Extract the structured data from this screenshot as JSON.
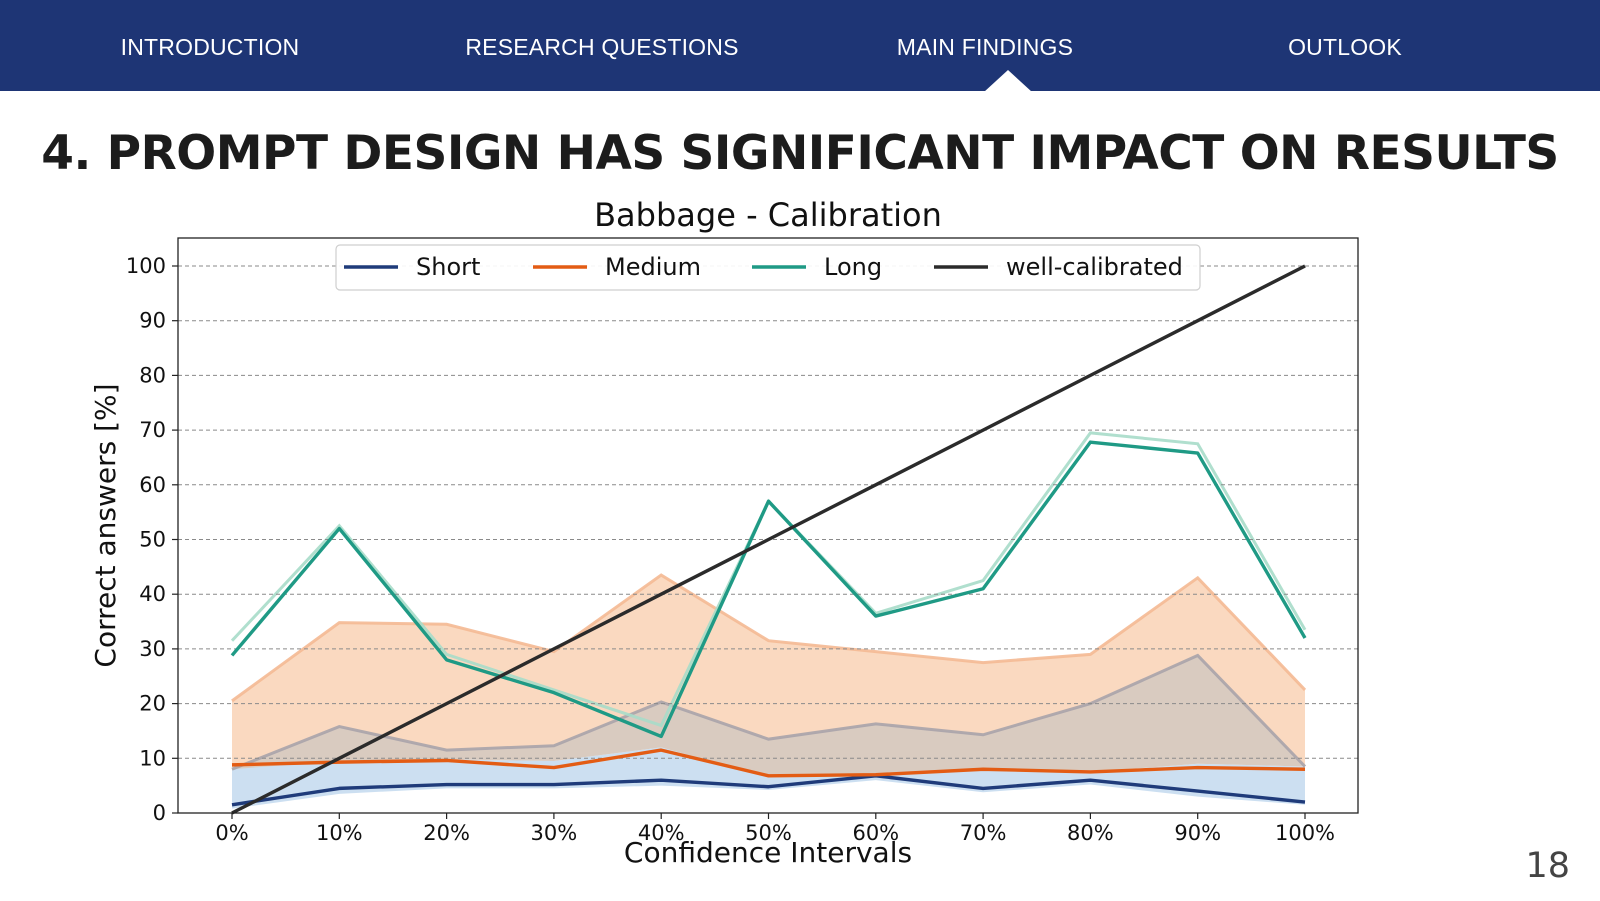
{
  "nav": {
    "items": [
      {
        "label": "INTRODUCTION"
      },
      {
        "label": "RESEARCH QUESTIONS"
      },
      {
        "label": "MAIN FINDINGS"
      },
      {
        "label": "OUTLOOK"
      }
    ],
    "active_index": 2
  },
  "slide": {
    "title": "4. PROMPT DESIGN HAS SIGNIFICANT IMPACT ON RESULTS",
    "page_number": "18"
  },
  "colors": {
    "nav_bg": "#1e3575",
    "short": "#1f3b7a",
    "medium": "#e35c14",
    "long": "#1f9a85",
    "well_calibrated": "#2b2b2b",
    "short_band": "#c9ddf0",
    "medium_band": "#fad7bd",
    "overlap_band": "#d9cbc0"
  },
  "chart_data": {
    "type": "line",
    "title": "Babbage - Calibration",
    "xlabel": "Confidence Intervals",
    "ylabel": "Correct answers [%]",
    "categories": [
      "0%",
      "10%",
      "20%",
      "30%",
      "40%",
      "50%",
      "60%",
      "70%",
      "80%",
      "90%",
      "100%"
    ],
    "yticks": [
      0,
      10,
      20,
      30,
      40,
      50,
      60,
      70,
      80,
      90,
      100
    ],
    "ylim": [
      0,
      105
    ],
    "grid": "horizontal dashed",
    "legend_position": "top",
    "series": [
      {
        "name": "Short",
        "values": [
          1.5,
          4.5,
          5.2,
          5.2,
          6.0,
          4.8,
          6.8,
          4.5,
          6.0,
          4.0,
          2.0
        ],
        "band_upper": [
          8.5,
          9.5,
          9.8,
          9.5,
          12.0,
          6.5,
          6.8,
          8.0,
          7.5,
          9.0,
          8.5
        ],
        "band_lower": [
          0.8,
          3.5,
          4.5,
          4.5,
          5.0,
          4.2,
          6.0,
          3.8,
          5.2,
          3.0,
          1.5
        ]
      },
      {
        "name": "Medium",
        "values": [
          8.8,
          9.3,
          9.6,
          8.3,
          11.5,
          6.8,
          7.0,
          8.0,
          7.5,
          8.3,
          8.0
        ],
        "band_upper": [
          20.5,
          34.8,
          34.5,
          29.5,
          43.5,
          31.5,
          29.5,
          27.5,
          29.0,
          43.0,
          22.5
        ],
        "band_lower": [
          8.0,
          15.8,
          11.5,
          12.3,
          20.3,
          13.5,
          16.3,
          14.3,
          20.0,
          28.8,
          8.5
        ]
      },
      {
        "name": "Long",
        "values": [
          28.8,
          52.0,
          28.0,
          22.0,
          14.0,
          57.0,
          36.0,
          41.0,
          67.8,
          65.8,
          32.0
        ],
        "band_upper": [
          31.5,
          52.5,
          29.0,
          22.5,
          16.0,
          57.0,
          36.5,
          42.5,
          69.5,
          67.5,
          33.5
        ],
        "band_lower": [
          28.5,
          51.5,
          27.5,
          21.5,
          13.8,
          56.5,
          35.5,
          40.5,
          67.5,
          65.5,
          31.5
        ]
      },
      {
        "name": "well-calibrated",
        "values": [
          0,
          10,
          20,
          30,
          40,
          50,
          60,
          70,
          80,
          90,
          100
        ]
      }
    ]
  }
}
